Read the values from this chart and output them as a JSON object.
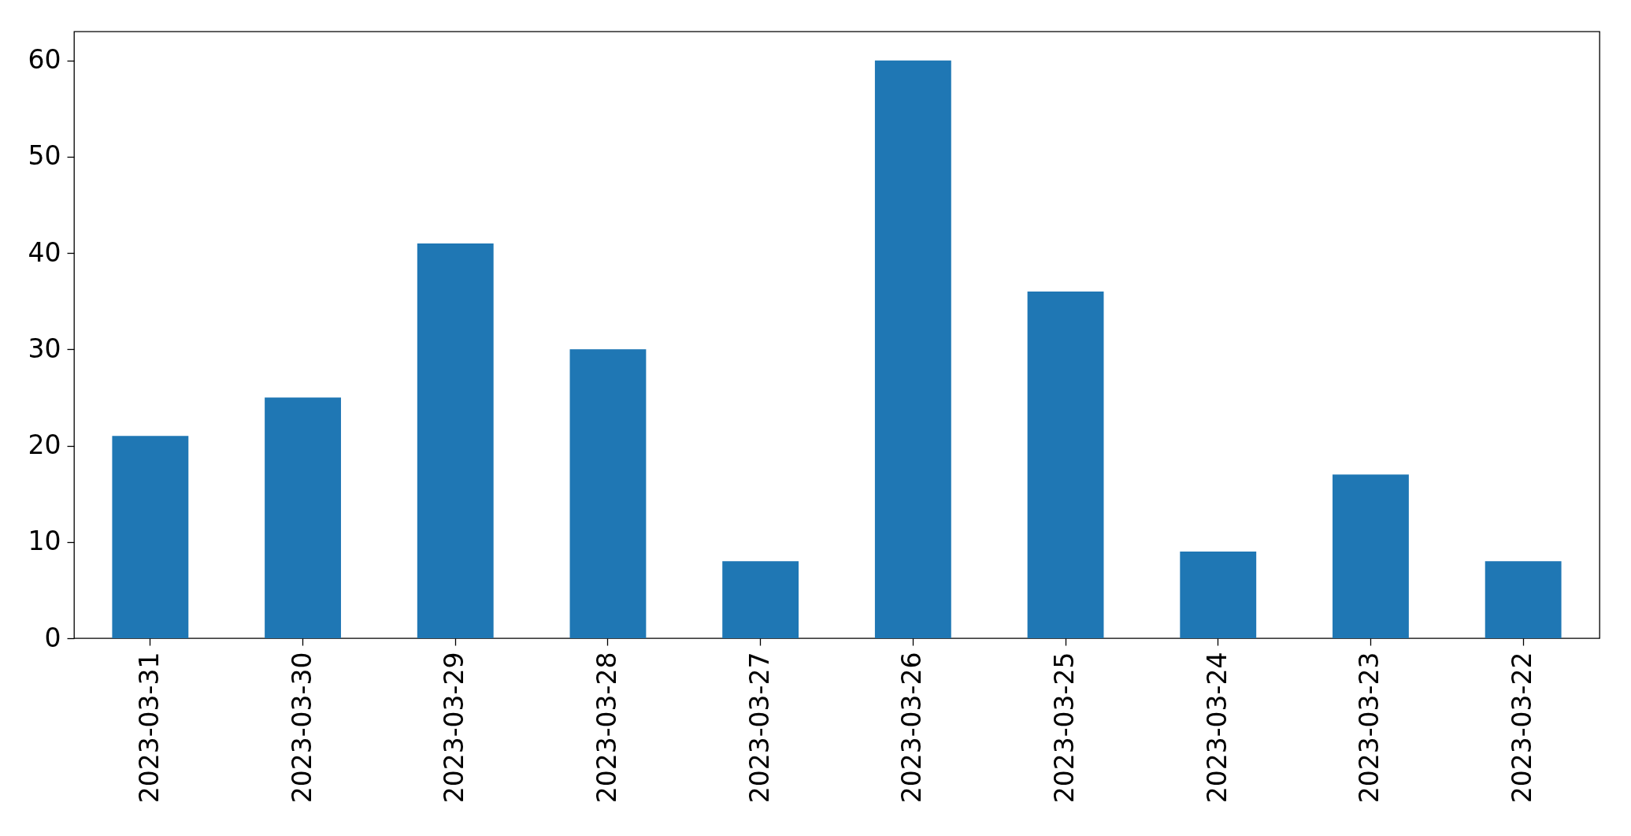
{
  "chart_data": {
    "type": "bar",
    "categories": [
      "2023-03-31",
      "2023-03-30",
      "2023-03-29",
      "2023-03-28",
      "2023-03-27",
      "2023-03-26",
      "2023-03-25",
      "2023-03-24",
      "2023-03-23",
      "2023-03-22"
    ],
    "values": [
      21,
      25,
      41,
      30,
      8,
      60,
      36,
      9,
      17,
      8
    ],
    "color": "#1f77b4",
    "ylim": [
      0,
      63
    ],
    "yticks": [
      0,
      10,
      20,
      30,
      40,
      50,
      60
    ],
    "grid": false
  }
}
